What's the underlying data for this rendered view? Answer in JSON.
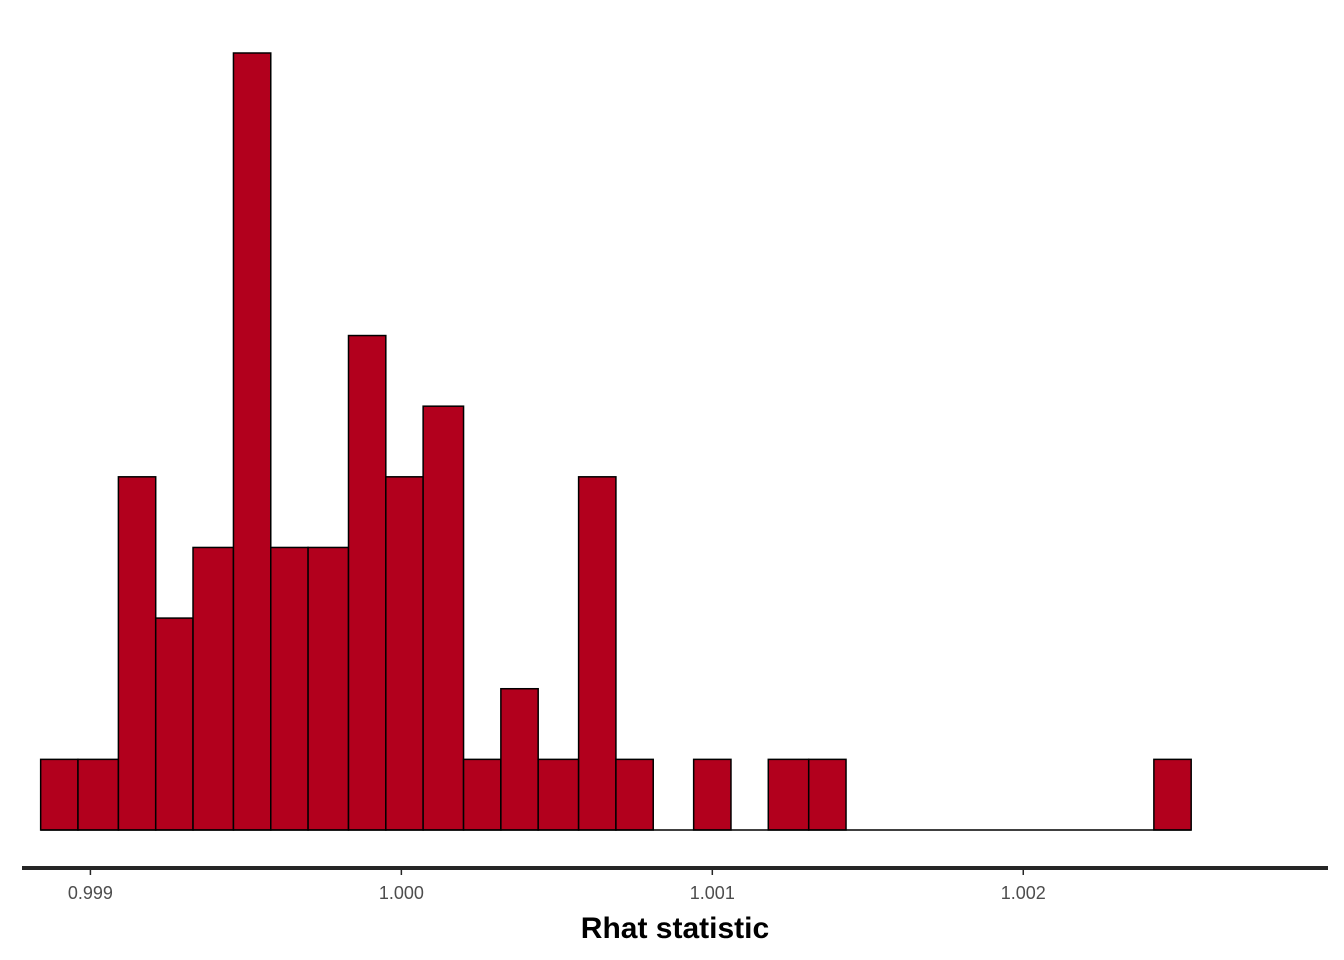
{
  "chart_data": {
    "type": "bar",
    "title": "",
    "xlabel": "Rhat statistic",
    "ylabel": "",
    "bin_edges": [
      0.99884,
      0.99896,
      0.99909,
      0.99921,
      0.99933,
      0.99946,
      0.99958,
      0.9997,
      0.99983,
      0.99995,
      1.00007,
      1.0002,
      1.00032,
      1.00044,
      1.00057,
      1.00069,
      1.00081,
      1.00094,
      1.00106,
      1.00118,
      1.00131,
      1.00143,
      1.00155,
      1.00168,
      1.0018,
      1.00192,
      1.00205,
      1.00217,
      1.00229,
      1.00242,
      1.00254
    ],
    "counts": [
      1,
      1,
      5,
      3,
      4,
      11,
      4,
      4,
      7,
      5,
      6,
      1,
      2,
      1,
      5,
      1,
      0,
      1,
      0,
      1,
      1,
      0,
      0,
      0,
      0,
      0,
      0,
      0,
      0,
      1
    ],
    "xlim": [
      0.99878,
      1.00298
    ],
    "ylim": [
      0,
      11
    ],
    "x_ticks": [
      0.999,
      1.0,
      1.001,
      1.002
    ],
    "x_tick_labels": [
      "0.999",
      "1.000",
      "1.001",
      "1.002"
    ],
    "y_axis_shown": false,
    "grid": false,
    "legend": "none",
    "colors": {
      "fill": "#B2001D",
      "outline": "#000000",
      "axis": "#262626",
      "tick_label": "#4d4d4d"
    }
  }
}
